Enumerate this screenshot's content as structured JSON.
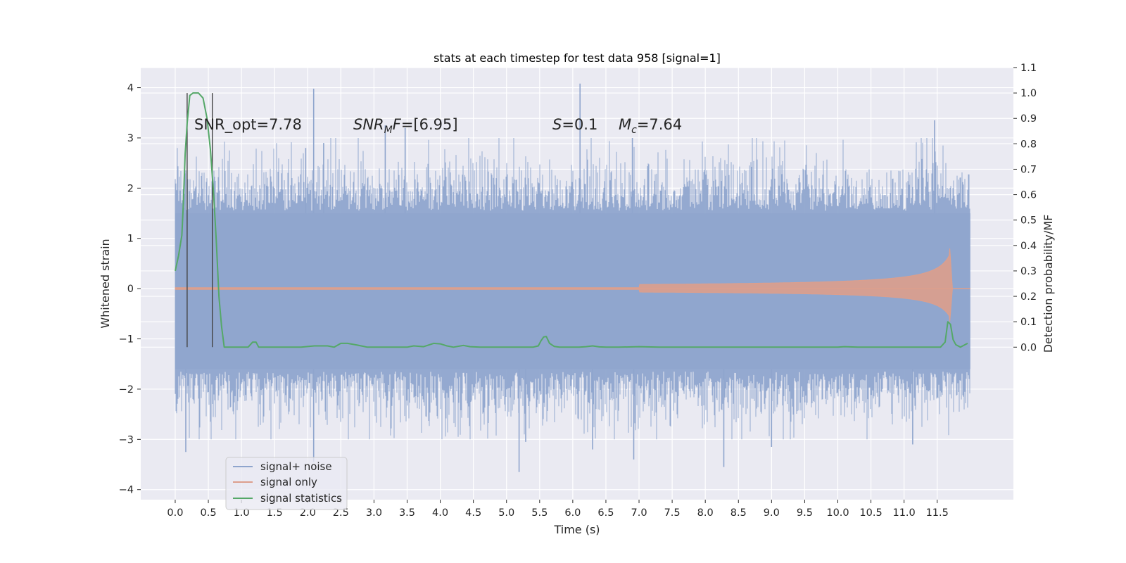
{
  "chart_data": {
    "type": "line",
    "title": "stats at each timestep for test data 958 [signal=1]",
    "xlabel": "Time (s)",
    "ylabel_left": "Whitened strain",
    "ylabel_right": "Detection probability/MF",
    "xlim": [
      -0.52,
      12.65
    ],
    "ylim_left": [
      -4.2,
      4.4
    ],
    "ylim_right": [
      -0.6,
      1.1
    ],
    "x_ticks": [
      "0.0",
      "0.5",
      "1.0",
      "1.5",
      "2.0",
      "2.5",
      "3.0",
      "3.5",
      "4.0",
      "4.5",
      "5.0",
      "5.5",
      "6.0",
      "6.5",
      "7.0",
      "7.5",
      "8.0",
      "8.5",
      "9.0",
      "9.5",
      "10.0",
      "10.5",
      "11.0",
      "11.5"
    ],
    "y_left_ticks": [
      "4",
      "3",
      "2",
      "1",
      "0",
      "−1",
      "−2",
      "−3",
      "−4"
    ],
    "y_left_tick_values": [
      4,
      3,
      2,
      1,
      0,
      -1,
      -2,
      -3,
      -4
    ],
    "y_right_ticks": [
      "1.1",
      "1.0",
      "0.9",
      "0.8",
      "0.7",
      "0.6",
      "0.5",
      "0.4",
      "0.3",
      "0.2",
      "0.1",
      "0.0"
    ],
    "y_right_tick_values": [
      1.1,
      1.0,
      0.9,
      0.8,
      0.7,
      0.6,
      0.5,
      0.4,
      0.3,
      0.2,
      0.1,
      0.0
    ],
    "grid": true,
    "legend_position": "lower-left",
    "annotations": [
      {
        "text": "SNR_opt=7.78",
        "x": 0.2,
        "y_right": 1.0
      },
      {
        "text": "SNR_MF=[6.95]",
        "x": 2.6,
        "y_right": 1.0
      },
      {
        "text": "S=0.1",
        "x": 5.6,
        "y_right": 1.0
      },
      {
        "text": "M_c=7.64",
        "x": 6.6,
        "y_right": 1.0
      }
    ],
    "vlines": [
      {
        "x": 0.18,
        "y_right_range": [
          0.0,
          1.0
        ]
      },
      {
        "x": 0.56,
        "y_right_range": [
          0.0,
          1.0
        ]
      }
    ],
    "series": [
      {
        "name": "signal+ noise",
        "axis": "left",
        "color": "#8fa5cd",
        "kind": "noise_band",
        "x_range": [
          0.0,
          12.0
        ],
        "envelope_upper": 1.5,
        "envelope_lower": -1.6,
        "spike_peaks": [
          {
            "x": 2.09,
            "y": 3.98
          },
          {
            "x": 6.11,
            "y": 4.08
          },
          {
            "x": 11.46,
            "y": 3.35
          },
          {
            "x": 3.17,
            "y": 3.25
          },
          {
            "x": 3.47,
            "y": 3.2
          },
          {
            "x": 2.24,
            "y": 2.9
          },
          {
            "x": 1.97,
            "y": 2.8
          },
          {
            "x": 6.9,
            "y": 3.0
          },
          {
            "x": 5.19,
            "y": -3.65
          },
          {
            "x": 2.09,
            "y": -3.45
          },
          {
            "x": 8.28,
            "y": -3.55
          },
          {
            "x": 6.3,
            "y": -3.2
          },
          {
            "x": 6.92,
            "y": -3.4
          },
          {
            "x": 0.16,
            "y": -3.25
          },
          {
            "x": 5.29,
            "y": -3.05
          },
          {
            "x": 9.0,
            "y": -3.15
          },
          {
            "x": 11.13,
            "y": -3.1
          }
        ]
      },
      {
        "name": "signal only",
        "axis": "left",
        "color": "#dd9f8c",
        "kind": "chirp",
        "x_range": [
          0.0,
          12.0
        ],
        "start_amplitude": 0.02,
        "peak_x": 11.68,
        "peak_amplitude": 1.0,
        "min_value": -0.8
      },
      {
        "name": "signal statistics",
        "axis": "right",
        "color": "#55a868",
        "x": [
          0.0,
          0.05,
          0.1,
          0.12,
          0.15,
          0.18,
          0.22,
          0.27,
          0.35,
          0.42,
          0.48,
          0.53,
          0.58,
          0.62,
          0.66,
          0.7,
          0.74,
          0.8,
          0.9,
          1.0,
          1.1,
          1.17,
          1.22,
          1.26,
          1.3,
          1.4,
          1.6,
          1.9,
          2.1,
          2.3,
          2.4,
          2.5,
          2.6,
          2.75,
          2.9,
          3.1,
          3.3,
          3.5,
          3.6,
          3.75,
          3.9,
          4.0,
          4.1,
          4.2,
          4.35,
          4.45,
          4.6,
          4.8,
          5.0,
          5.2,
          5.4,
          5.48,
          5.52,
          5.56,
          5.6,
          5.65,
          5.72,
          5.8,
          5.95,
          6.1,
          6.2,
          6.3,
          6.4,
          6.5,
          6.7,
          7.0,
          7.3,
          7.6,
          8.0,
          8.5,
          9.0,
          9.5,
          10.0,
          10.1,
          10.3,
          10.6,
          11.0,
          11.3,
          11.55,
          11.62,
          11.66,
          11.7,
          11.74,
          11.78,
          11.85,
          11.92,
          11.96
        ],
        "y": [
          0.3,
          0.36,
          0.44,
          0.55,
          0.76,
          0.88,
          0.99,
          1.0,
          1.0,
          0.98,
          0.9,
          0.78,
          0.6,
          0.42,
          0.2,
          0.08,
          0.0,
          0.0,
          0.0,
          0.0,
          0.0,
          0.02,
          0.02,
          0.0,
          0.0,
          0.0,
          0.0,
          0.0,
          0.005,
          0.005,
          0.0,
          0.015,
          0.015,
          0.008,
          0.0,
          0.0,
          0.0,
          0.0,
          0.005,
          0.002,
          0.015,
          0.013,
          0.005,
          0.0,
          0.007,
          0.002,
          0.0,
          0.0,
          0.0,
          0.0,
          0.0,
          0.005,
          0.025,
          0.04,
          0.042,
          0.015,
          0.003,
          0.0,
          0.0,
          0.0,
          0.002,
          0.005,
          0.001,
          0.0,
          0.0,
          0.002,
          0.0,
          0.0,
          0.0,
          0.0,
          0.0,
          0.0,
          0.0,
          0.002,
          0.0,
          0.0,
          0.0,
          0.0,
          0.0,
          0.02,
          0.1,
          0.09,
          0.03,
          0.01,
          0.0,
          0.01,
          0.015
        ]
      }
    ]
  }
}
